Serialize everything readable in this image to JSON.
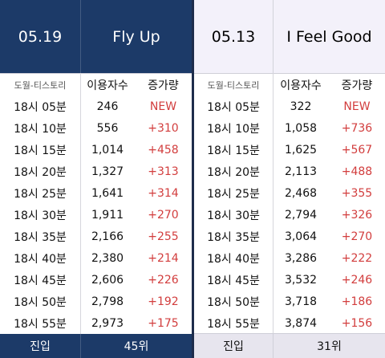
{
  "left": {
    "date": "05.19",
    "song": "Fly Up",
    "col_time": "도월-티스토리",
    "col_users": "이용자수",
    "col_increase": "증가량",
    "rows": [
      {
        "time": "18시 05분",
        "users": "246",
        "inc": "NEW"
      },
      {
        "time": "18시 10분",
        "users": "556",
        "inc": "+310"
      },
      {
        "time": "18시 15분",
        "users": "1,014",
        "inc": "+458"
      },
      {
        "time": "18시 20분",
        "users": "1,327",
        "inc": "+313"
      },
      {
        "time": "18시 25분",
        "users": "1,641",
        "inc": "+314"
      },
      {
        "time": "18시 30분",
        "users": "1,911",
        "inc": "+270"
      },
      {
        "time": "18시 35분",
        "users": "2,166",
        "inc": "+255"
      },
      {
        "time": "18시 40분",
        "users": "2,380",
        "inc": "+214"
      },
      {
        "time": "18시 45분",
        "users": "2,606",
        "inc": "+226"
      },
      {
        "time": "18시 50분",
        "users": "2,798",
        "inc": "+192"
      },
      {
        "time": "18시 55분",
        "users": "2,973",
        "inc": "+175"
      }
    ],
    "footer_label": "진입",
    "footer_value": "45위"
  },
  "right": {
    "date": "05.13",
    "song": "I Feel Good",
    "col_time": "도월-티스토리",
    "col_users": "이용자수",
    "col_increase": "증가량",
    "rows": [
      {
        "time": "18시 05분",
        "users": "322",
        "inc": "NEW"
      },
      {
        "time": "18시 10분",
        "users": "1,058",
        "inc": "+736"
      },
      {
        "time": "18시 15분",
        "users": "1,625",
        "inc": "+567"
      },
      {
        "time": "18시 20분",
        "users": "2,113",
        "inc": "+488"
      },
      {
        "time": "18시 25분",
        "users": "2,468",
        "inc": "+355"
      },
      {
        "time": "18시 30분",
        "users": "2,794",
        "inc": "+326"
      },
      {
        "time": "18시 35분",
        "users": "3,064",
        "inc": "+270"
      },
      {
        "time": "18시 40분",
        "users": "3,286",
        "inc": "+222"
      },
      {
        "time": "18시 45분",
        "users": "3,532",
        "inc": "+246"
      },
      {
        "time": "18시 50분",
        "users": "3,718",
        "inc": "+186"
      },
      {
        "time": "18시 55분",
        "users": "3,874",
        "inc": "+156"
      }
    ],
    "footer_label": "진입",
    "footer_value": "31위"
  },
  "colors": {
    "header_navy": "#1c3a68",
    "increase_red": "#d23d3d",
    "right_header_bg": "#f3f1fa"
  }
}
